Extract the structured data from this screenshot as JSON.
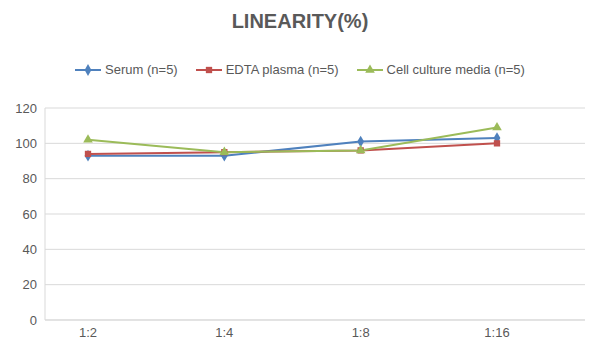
{
  "chart_data": {
    "type": "line",
    "title": "LINEARITY(%)",
    "categories": [
      "1:2",
      "1:4",
      "1:8",
      "1:16"
    ],
    "series": [
      {
        "name": "Serum (n=5)",
        "color": "#4f81bd",
        "marker": "diamond",
        "values": [
          93,
          93,
          101,
          103
        ]
      },
      {
        "name": "EDTA plasma (n=5)",
        "color": "#c0504d",
        "marker": "square",
        "values": [
          94,
          95,
          96,
          100
        ]
      },
      {
        "name": "Cell culture media (n=5)",
        "color": "#9bbb59",
        "marker": "triangle",
        "values": [
          102,
          95,
          96,
          109
        ]
      }
    ],
    "ylim": [
      0,
      120
    ],
    "yticks": [
      0,
      20,
      40,
      60,
      80,
      100,
      120
    ],
    "grid": true
  }
}
